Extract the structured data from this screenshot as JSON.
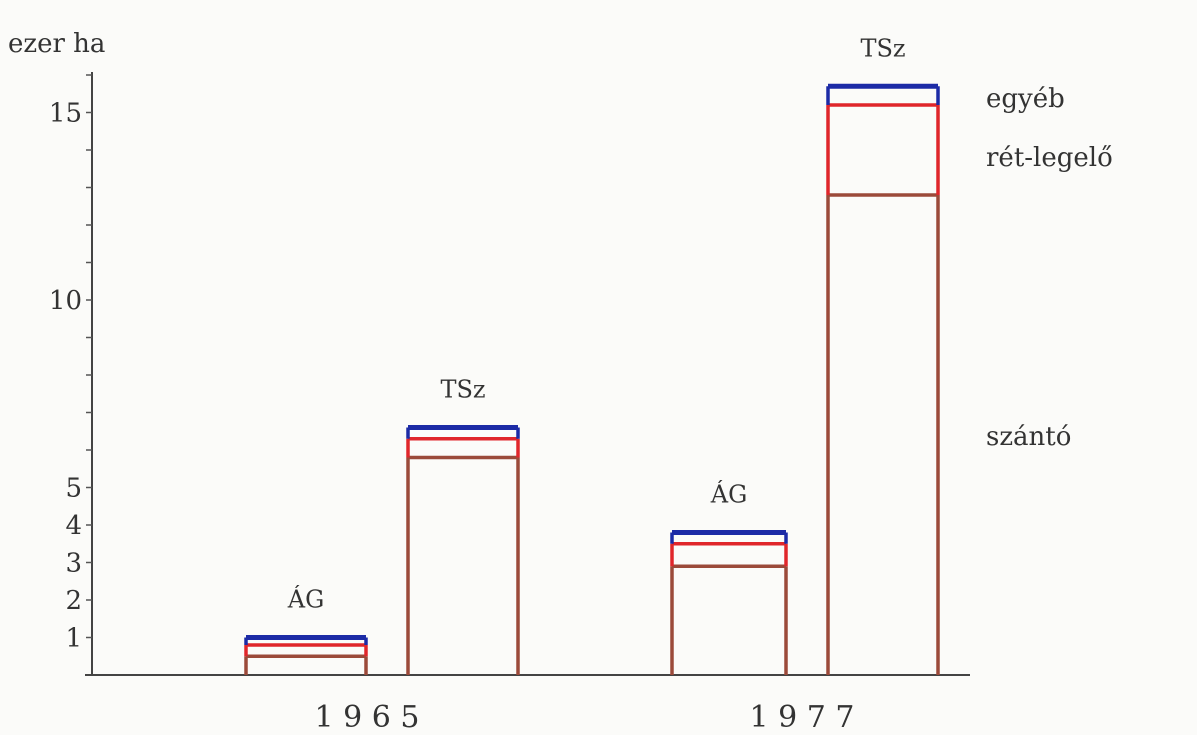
{
  "chart_data": {
    "type": "bar",
    "stacked": true,
    "ylabel": "ezer ha",
    "yticks_labeled": [
      1,
      2,
      3,
      4,
      5,
      10,
      15
    ],
    "ylim": [
      0,
      16
    ],
    "years": [
      "1 9 6 5",
      "1 9 7 7"
    ],
    "categories": [
      {
        "label": "ÁG",
        "year": "1965"
      },
      {
        "label": "TSz",
        "year": "1965"
      },
      {
        "label": "ÁG",
        "year": "1977"
      },
      {
        "label": "TSz",
        "year": "1977"
      }
    ],
    "series": [
      {
        "name": "szántó",
        "color": "#9b4a3a",
        "values": [
          0.5,
          5.8,
          2.9,
          12.8
        ]
      },
      {
        "name": "rét-legelő",
        "color": "#e0262b",
        "values": [
          0.3,
          0.5,
          0.6,
          2.4
        ]
      },
      {
        "name": "egyéb",
        "color": "#1c2ba6",
        "values": [
          0.2,
          0.3,
          0.3,
          0.5
        ]
      }
    ],
    "segment_labels": [
      "szántó",
      "rét-legelő",
      "egyéb"
    ],
    "grid": false
  }
}
